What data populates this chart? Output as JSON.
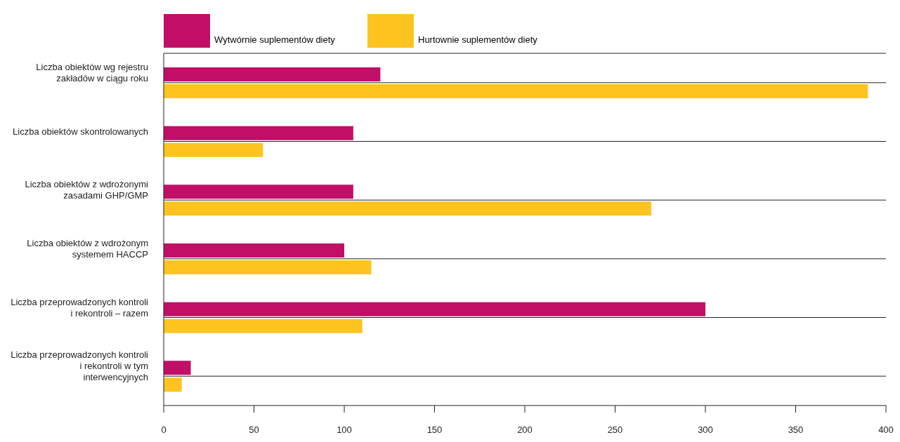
{
  "chart_data": {
    "type": "bar",
    "orientation": "horizontal",
    "categories": [
      "Liczba obiektów wg rejestru zakładów w ciągu roku",
      "Liczba obiektów skontrolowanych",
      "Liczba obiektów z wdrożonymi zasadami GHP/GMP",
      "Liczba obiektów z wdrożonym systemem HACCP",
      "Liczba przeprowadzonych kontroli i rekontroli – razem",
      "Liczba przeprowadzonych kontroli i rekontroli w tym interwencyjnych"
    ],
    "series": [
      {
        "name": "Wytwórnie suplementów diety",
        "color": "#c10f67",
        "values": [
          120,
          105,
          105,
          100,
          300,
          15
        ]
      },
      {
        "name": "Hurtownie suplementów diety",
        "color": "#fdc31f",
        "values": [
          390,
          55,
          270,
          115,
          110,
          10
        ]
      }
    ],
    "xlim": [
      0,
      400
    ],
    "xticks": [
      0,
      50,
      100,
      150,
      200,
      250,
      300,
      350,
      400
    ],
    "grid": "y",
    "legend": "top"
  }
}
